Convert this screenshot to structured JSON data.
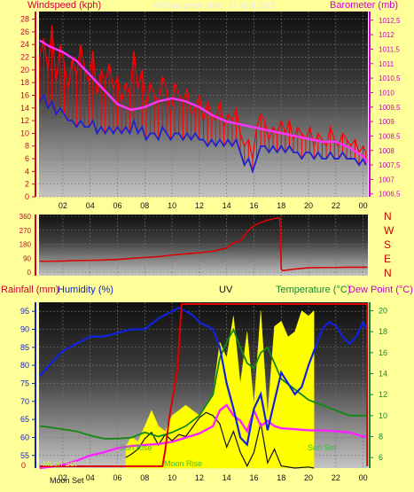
{
  "page": {
    "background": "#ffff9a"
  },
  "chart_data": [
    {
      "id": "wind_baro",
      "type": "line",
      "title": "All Data graph date : 17 April 2015",
      "ylabel_left": "Windspeed (kph)",
      "ylabel_right": "Barometer (mb)",
      "x_ticks": [
        "02",
        "04",
        "06",
        "08",
        "10",
        "12",
        "14",
        "16",
        "18",
        "20",
        "22",
        "00"
      ],
      "x_range": [
        0.25,
        24.35
      ],
      "y_left_ticks": [
        "0",
        "2",
        "4",
        "6",
        "8",
        "10",
        "12",
        "14",
        "16",
        "18",
        "20",
        "22",
        "24",
        "26",
        "28"
      ],
      "y_left_range": [
        0,
        29.2
      ],
      "y_right_ticks": [
        "1006,5",
        "1007",
        "1007,5",
        "1008",
        "1008,5",
        "1009",
        "1009,5",
        "1010",
        "1010,5",
        "1011",
        "1011,5",
        "1012",
        "1012,5"
      ],
      "y_right_range": [
        1006.4,
        1012.8
      ],
      "colors": {
        "gust": "#ff0000",
        "average": "#2222cc",
        "barometer": "#ff33ff",
        "left_axis": "#cc0033",
        "right_axis": "#cc00cc"
      },
      "series": [
        {
          "id": "gust",
          "name": "Windspeed",
          "x": [
            0.3,
            0.6,
            0.9,
            1.2,
            1.5,
            1.8,
            2.1,
            2.4,
            2.7,
            3.0,
            3.3,
            3.6,
            3.9,
            4.2,
            4.5,
            4.8,
            5.1,
            5.4,
            5.7,
            6.0,
            6.3,
            6.6,
            6.9,
            7.2,
            7.5,
            7.8,
            8.1,
            8.4,
            8.7,
            9.0,
            9.3,
            9.6,
            9.9,
            10.2,
            10.5,
            10.8,
            11.1,
            11.4,
            11.7,
            12.0,
            12.3,
            12.6,
            12.9,
            13.2,
            13.5,
            13.8,
            14.1,
            14.4,
            14.7,
            15.0,
            15.3,
            15.6,
            15.9,
            16.2,
            16.5,
            16.8,
            17.1,
            17.4,
            17.7,
            18.0,
            18.3,
            18.6,
            18.9,
            19.2,
            19.5,
            19.8,
            20.1,
            20.4,
            20.7,
            21.0,
            21.3,
            21.6,
            21.9,
            22.2,
            22.5,
            22.8,
            23.1,
            23.4,
            23.7,
            24.0,
            24.2
          ],
          "values": [
            22,
            25,
            20,
            27,
            18,
            24,
            21,
            17,
            22,
            19,
            24,
            20,
            18,
            23,
            16,
            20,
            18,
            21,
            17,
            19,
            15,
            18,
            16,
            23,
            17,
            20,
            14,
            18,
            16,
            15,
            19,
            17,
            13,
            18,
            16,
            15,
            17,
            13,
            14,
            16,
            12,
            15,
            13,
            12,
            15,
            11,
            13,
            12,
            14,
            10,
            8,
            9,
            6,
            11,
            13,
            12,
            9,
            11,
            10,
            12,
            10,
            12,
            9,
            11,
            10,
            9,
            11,
            8,
            10,
            9,
            8,
            11,
            9,
            8,
            10,
            9,
            8,
            9,
            7,
            8,
            7
          ]
        },
        {
          "id": "average",
          "name": "Average",
          "x": [
            0.3,
            0.6,
            0.9,
            1.2,
            1.5,
            1.8,
            2.1,
            2.4,
            2.7,
            3.0,
            3.3,
            3.6,
            3.9,
            4.2,
            4.5,
            4.8,
            5.1,
            5.4,
            5.7,
            6.0,
            6.3,
            6.6,
            6.9,
            7.2,
            7.5,
            7.8,
            8.1,
            8.4,
            8.7,
            9.0,
            9.3,
            9.6,
            9.9,
            10.2,
            10.5,
            10.8,
            11.1,
            11.4,
            11.7,
            12.0,
            12.3,
            12.6,
            12.9,
            13.2,
            13.5,
            13.8,
            14.1,
            14.4,
            14.7,
            15.0,
            15.3,
            15.6,
            15.9,
            16.2,
            16.5,
            16.8,
            17.1,
            17.4,
            17.7,
            18.0,
            18.3,
            18.6,
            18.9,
            19.2,
            19.5,
            19.8,
            20.1,
            20.4,
            20.7,
            21.0,
            21.3,
            21.6,
            21.9,
            22.2,
            22.5,
            22.8,
            23.1,
            23.4,
            23.7,
            24.0,
            24.2
          ],
          "values": [
            15,
            16,
            14,
            15,
            13,
            14,
            13,
            12,
            12,
            11,
            12,
            11,
            11,
            12,
            10,
            11,
            10,
            11,
            10,
            11,
            10,
            11,
            10,
            12,
            10,
            11,
            9,
            10,
            10,
            9,
            11,
            10,
            9,
            10,
            10,
            9,
            10,
            9,
            10,
            9,
            9,
            8,
            9,
            8,
            9,
            8,
            9,
            8,
            9,
            7,
            5,
            6,
            4,
            6,
            8,
            8,
            7,
            8,
            7,
            8,
            7,
            8,
            7,
            7,
            6,
            7,
            7,
            6,
            7,
            6,
            6,
            7,
            6,
            6,
            7,
            6,
            6,
            6,
            5,
            6,
            5
          ]
        },
        {
          "id": "barometer",
          "name": "Barometer",
          "axis": "right",
          "x": [
            0.3,
            1,
            2,
            3,
            4,
            5,
            6,
            7,
            8,
            9,
            10,
            11,
            12,
            13,
            14,
            15,
            16,
            17,
            18,
            19,
            20,
            21,
            22,
            23,
            24,
            24.3
          ],
          "values": [
            1011.8,
            1011.6,
            1011.4,
            1011.1,
            1010.6,
            1010.1,
            1009.6,
            1009.4,
            1009.5,
            1009.7,
            1009.8,
            1009.7,
            1009.5,
            1009.2,
            1009.0,
            1008.9,
            1008.8,
            1008.7,
            1008.6,
            1008.5,
            1008.4,
            1008.3,
            1008.3,
            1008.1,
            1007.8,
            1007.6
          ]
        }
      ]
    },
    {
      "id": "wind_dir",
      "type": "line",
      "x_ticks": [
        "02",
        "04",
        "06",
        "08",
        "10",
        "12",
        "14",
        "16",
        "18",
        "20",
        "22",
        "00"
      ],
      "x_range": [
        0.25,
        24.35
      ],
      "y_left_ticks": [
        "0",
        "90",
        "180",
        "270",
        "360"
      ],
      "y_left_range": [
        0,
        360
      ],
      "direction_labels": [
        "N",
        "W",
        "S",
        "E",
        "N"
      ],
      "colors": {
        "direction": "#dd0000",
        "compass": "#cc0000"
      },
      "series": [
        {
          "id": "direction",
          "name": "Wind direction",
          "x": [
            0.3,
            1,
            2,
            3,
            4,
            5,
            6,
            7,
            8,
            9,
            10,
            11,
            12,
            13,
            14,
            14.5,
            15,
            15.3,
            15.6,
            16,
            16.5,
            17,
            17.5,
            17.9,
            18.0,
            18.1,
            19,
            20,
            21,
            22,
            23,
            24,
            24.3
          ],
          "values": [
            70,
            70,
            72,
            75,
            76,
            78,
            82,
            88,
            95,
            100,
            110,
            118,
            125,
            135,
            155,
            190,
            200,
            235,
            270,
            300,
            320,
            335,
            345,
            350,
            20,
            10,
            20,
            28,
            30,
            30,
            32,
            32,
            32
          ]
        }
      ]
    },
    {
      "id": "rain_humidity_temp",
      "type": "line",
      "title": "UV",
      "ylabel_rain": "Rainfall (mm)",
      "ylabel_humidity": "Humidity (%)",
      "ylabel_temp": "Temperature (°C)",
      "ylabel_dew": "Dew Point (°C)",
      "x_ticks": [
        "02",
        "04",
        "06",
        "08",
        "10",
        "12",
        "14",
        "16",
        "18",
        "20",
        "22",
        "00"
      ],
      "x_range": [
        0.25,
        24.35
      ],
      "humidity_ticks": [
        "55",
        "60",
        "65",
        "70",
        "75",
        "80",
        "85",
        "90",
        "95"
      ],
      "humidity_range": [
        51.5,
        97.5
      ],
      "temp_ticks": [
        "6",
        "8",
        "10",
        "12",
        "14",
        "16",
        "18",
        "20"
      ],
      "temp_range": [
        5.0,
        20.8
      ],
      "rain_ticks": [
        "0"
      ],
      "annotations": [
        "Moon Set",
        "Moon Set",
        "Sun Rise",
        "Moon Rise",
        "Sun Set"
      ],
      "colors": {
        "humidity": "#1122dd",
        "temperature": "#118811",
        "dewpoint": "#ff22ff",
        "rainfall": "#dd0000",
        "uv": "#ffff00",
        "solar": "#111111",
        "rain_axis": "#cc0033",
        "humidity_axis": "#1122cc",
        "temp_axis": "#118833",
        "dew_axis": "#cc00cc"
      },
      "series": [
        {
          "id": "humidity",
          "name": "Humidity",
          "x": [
            0.3,
            1,
            2,
            3,
            4,
            5,
            6,
            7,
            8,
            9,
            10,
            10.5,
            11,
            11.5,
            12,
            13,
            13.5,
            14,
            14.5,
            15,
            15.5,
            16,
            16.5,
            17,
            17.5,
            18,
            18.5,
            19,
            19.5,
            20,
            20.5,
            21,
            21.5,
            22,
            22.5,
            23,
            23.5,
            24,
            24.3
          ],
          "values": [
            77,
            80,
            84,
            86,
            88,
            88,
            89,
            90,
            90,
            93,
            95,
            96,
            95,
            94,
            92,
            90,
            85,
            75,
            68,
            60,
            58,
            68,
            72,
            62,
            70,
            78,
            75,
            72,
            74,
            80,
            85,
            90,
            92,
            91,
            88,
            86,
            88,
            92,
            90
          ]
        },
        {
          "id": "temperature",
          "name": "Temperature",
          "axis": "temp",
          "x": [
            0.3,
            1,
            2,
            3,
            4,
            5,
            6,
            7,
            8,
            9,
            10,
            11,
            12,
            13,
            13.5,
            14,
            14.5,
            15,
            15.5,
            16,
            16.5,
            17,
            17.5,
            18,
            19,
            20,
            21,
            22,
            23,
            24,
            24.3
          ],
          "values": [
            9.0,
            8.9,
            8.7,
            8.5,
            8.1,
            7.8,
            7.8,
            7.9,
            8.4,
            8.0,
            8.4,
            9.0,
            10.0,
            12.0,
            15.5,
            17.0,
            18.2,
            16.5,
            15.0,
            14.5,
            16.0,
            16.5,
            15.0,
            13.5,
            12.5,
            11.5,
            11.0,
            10.5,
            10.0,
            10.0,
            10.0
          ]
        },
        {
          "id": "dewpoint",
          "name": "Dew Point",
          "axis": "temp",
          "x": [
            0.3,
            1,
            2,
            3,
            4,
            5,
            6,
            7,
            8,
            9,
            10,
            11,
            12,
            13,
            13.5,
            14,
            14.5,
            15,
            15.5,
            16,
            16.5,
            17,
            17.5,
            18,
            19,
            20,
            21,
            22,
            23,
            24,
            24.3
          ],
          "values": [
            5.0,
            5.1,
            5.3,
            5.7,
            6.2,
            6.5,
            6.9,
            7.1,
            7.2,
            7.3,
            7.5,
            7.9,
            8.3,
            9.0,
            10.5,
            11.0,
            10.0,
            9.5,
            8.5,
            10.5,
            9.0,
            9.5,
            9.0,
            8.8,
            8.7,
            8.6,
            8.6,
            8.5,
            8.4,
            8.0,
            8.0
          ]
        },
        {
          "id": "rainfall",
          "name": "Rainfall",
          "x": [
            0.3,
            9.3,
            9.5,
            9.8,
            10.0,
            10.4,
            10.7,
            24.3,
            24.3
          ],
          "values": [
            0,
            0,
            0.1,
            0.3,
            0.4,
            0.6,
            1.0,
            1.0,
            0
          ]
        },
        {
          "id": "uv",
          "name": "UV",
          "x": [
            6.6,
            7,
            7.5,
            8,
            8.5,
            9,
            9.5,
            10,
            11,
            12,
            13,
            13.5,
            14,
            14.5,
            15,
            15.5,
            16,
            16.5,
            17,
            17.5,
            18,
            18.5,
            19,
            19.5,
            20,
            20.4
          ],
          "values": [
            7.0,
            8.0,
            7.5,
            9.0,
            10.5,
            9.0,
            8.5,
            10.0,
            11.0,
            10.0,
            12.0,
            17.0,
            15.5,
            19.5,
            13.0,
            18.0,
            11.0,
            20.0,
            10.0,
            18.5,
            19.0,
            17.5,
            18.0,
            20.0,
            19.5,
            20.0
          ]
        },
        {
          "id": "solar",
          "name": "Solar",
          "x": [
            6.6,
            7,
            7.5,
            8,
            8.5,
            9,
            9.5,
            10,
            10.5,
            11,
            12,
            12.5,
            13,
            13.5,
            14,
            14.5,
            15,
            15.5,
            16,
            16.5,
            17,
            17.5,
            18,
            19,
            20,
            20.4
          ],
          "values": [
            6.0,
            6.3,
            6.8,
            7.8,
            8.4,
            7.2,
            8.2,
            7.6,
            8.2,
            8.0,
            9.8,
            10.3,
            10.0,
            9.2,
            7.0,
            8.5,
            6.5,
            5.2,
            6.5,
            9.3,
            5.5,
            6.8,
            5.2,
            5.0,
            5.1,
            5.0
          ]
        }
      ]
    }
  ]
}
